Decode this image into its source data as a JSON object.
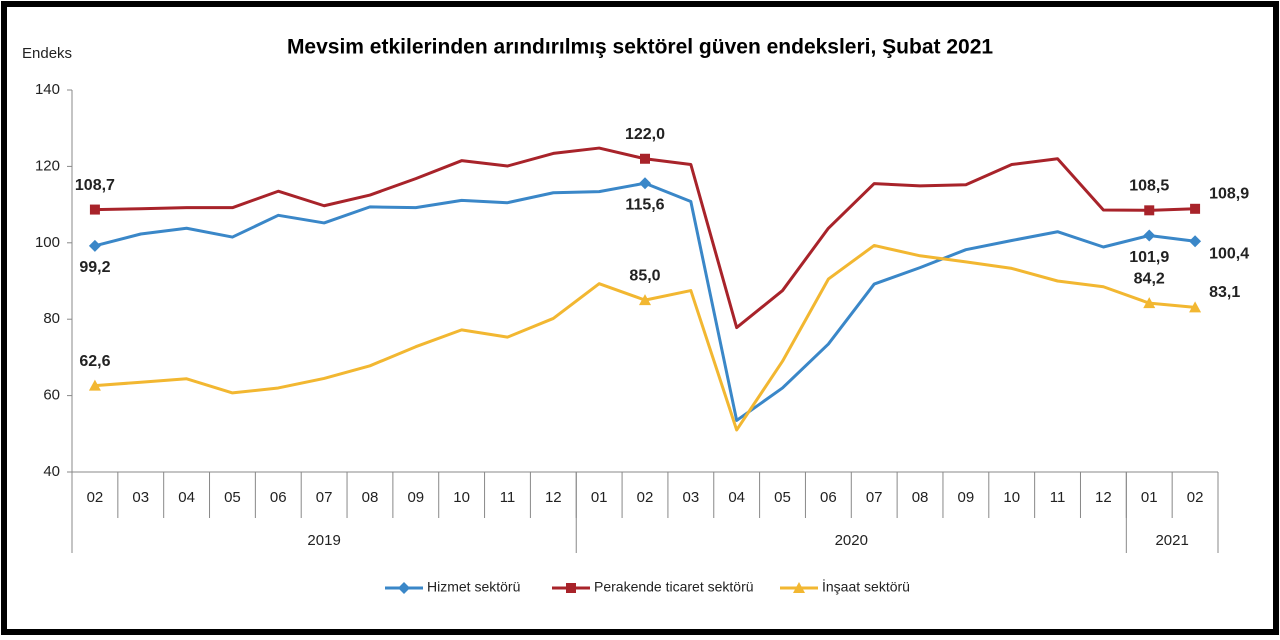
{
  "chart_data": {
    "type": "line",
    "title": "Mevsim etkilerinden arındırılmış sektörel güven endeksleri, Şubat 2021",
    "ylabel": "Endeks",
    "categories": [
      "02",
      "03",
      "04",
      "05",
      "06",
      "07",
      "08",
      "09",
      "10",
      "11",
      "12",
      "01",
      "02",
      "03",
      "04",
      "05",
      "06",
      "07",
      "08",
      "09",
      "10",
      "11",
      "12",
      "01",
      "02"
    ],
    "x_groups": [
      {
        "label": "2019",
        "span": 11
      },
      {
        "label": "2020",
        "span": 12
      },
      {
        "label": "2021",
        "span": 2
      }
    ],
    "ylim": [
      40,
      140
    ],
    "yticks": [
      40,
      60,
      80,
      100,
      120,
      140
    ],
    "legend": "bottom",
    "series": [
      {
        "name": "Hizmet sektörü",
        "color": "#3a87c8",
        "marker": "diamond",
        "values": [
          99.2,
          102.3,
          103.8,
          101.5,
          107.2,
          105.2,
          109.4,
          109.2,
          111.1,
          110.5,
          113.1,
          113.4,
          115.6,
          110.8,
          53.5,
          62,
          73.5,
          89.2,
          93.5,
          98.2,
          100.6,
          102.9,
          98.9,
          101.9,
          100.4
        ],
        "value_labels": [
          "99,2",
          null,
          null,
          null,
          null,
          null,
          null,
          null,
          null,
          null,
          null,
          null,
          "115,6",
          null,
          null,
          null,
          null,
          null,
          null,
          null,
          null,
          null,
          null,
          "101,9",
          "100,4"
        ]
      },
      {
        "name": "Perakende ticaret sektörü",
        "color": "#a8232a",
        "marker": "square",
        "values": [
          108.7,
          108.9,
          109.2,
          109.2,
          113.5,
          109.7,
          112.5,
          116.8,
          121.5,
          120.1,
          123.4,
          124.8,
          122.0,
          120.5,
          77.8,
          87.5,
          103.8,
          115.5,
          114.9,
          115.2,
          120.5,
          122.0,
          108.6,
          108.5,
          108.9
        ],
        "value_labels": [
          "108,7",
          null,
          null,
          null,
          null,
          null,
          null,
          null,
          null,
          null,
          null,
          null,
          "122,0",
          null,
          null,
          null,
          null,
          null,
          null,
          null,
          null,
          null,
          null,
          "108,5",
          "108,9"
        ]
      },
      {
        "name": "İnşaat sektörü",
        "color": "#f2b731",
        "marker": "triangle",
        "values": [
          62.6,
          63.5,
          64.4,
          60.7,
          62,
          64.5,
          67.8,
          72.8,
          77.2,
          75.3,
          80.2,
          89.3,
          85.0,
          87.5,
          51,
          69,
          90.5,
          99.3,
          96.6,
          95,
          93.3,
          90,
          88.5,
          84.2,
          83.1
        ],
        "value_labels": [
          "62,6",
          null,
          null,
          null,
          null,
          null,
          null,
          null,
          null,
          null,
          null,
          null,
          "85,0",
          null,
          null,
          null,
          null,
          null,
          null,
          null,
          null,
          null,
          null,
          "84,2",
          "83,1"
        ]
      }
    ]
  }
}
